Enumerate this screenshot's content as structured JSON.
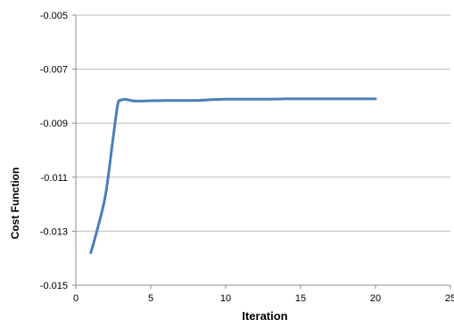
{
  "chart_data": {
    "type": "line",
    "title": "",
    "xlabel": "Iteration",
    "ylabel": "Cost Function",
    "xlim": [
      0,
      25
    ],
    "ylim": [
      -0.015,
      -0.005
    ],
    "x_ticks": [
      0,
      5,
      10,
      15,
      20,
      25
    ],
    "x_tick_labels": [
      "0",
      "5",
      "10",
      "15",
      "20",
      "25"
    ],
    "y_ticks": [
      -0.015,
      -0.013,
      -0.011,
      -0.009,
      -0.007,
      -0.005
    ],
    "y_tick_labels": [
      "-0.015",
      "-0.013",
      "-0.011",
      "-0.009",
      "-0.007",
      "-0.005"
    ],
    "grid": "horizontal",
    "legend": "none",
    "colors": {
      "line": "#4a7ebb",
      "grid": "#bdbdbd",
      "axis": "#8c8c8c",
      "text": "#000000"
    },
    "series": [
      {
        "x": [
          1,
          1.5,
          2,
          2.5,
          2.8,
          3,
          3.3,
          3.6,
          4,
          5,
          6,
          7,
          8,
          9,
          10,
          11,
          12,
          13,
          14,
          15,
          16,
          17,
          18,
          19,
          20
        ],
        "y": [
          -0.0138,
          -0.0128,
          -0.0116,
          -0.0095,
          -0.0083,
          -0.00815,
          -0.00812,
          -0.00815,
          -0.00818,
          -0.00817,
          -0.00816,
          -0.00816,
          -0.00816,
          -0.00813,
          -0.00811,
          -0.00811,
          -0.00811,
          -0.00811,
          -0.0081,
          -0.0081,
          -0.0081,
          -0.0081,
          -0.0081,
          -0.0081,
          -0.0081
        ]
      }
    ]
  }
}
